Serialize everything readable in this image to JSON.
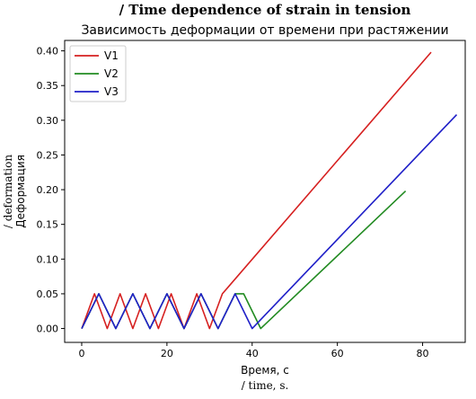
{
  "chart_data": {
    "type": "line",
    "title_en": "/ Time dependence of strain in tension",
    "title": "Зависимость деформации от времени при растяжении",
    "xlabel": "Время, с",
    "xlabel_en": "/ time, s.",
    "ylabel": "Деформация",
    "ylabel_en": "/ deformation",
    "xlim": [
      -4,
      90
    ],
    "ylim": [
      -0.02,
      0.415
    ],
    "x_ticks": [
      0,
      20,
      40,
      60,
      80
    ],
    "y_ticks": [
      0.0,
      0.05,
      0.1,
      0.15,
      0.2,
      0.25,
      0.3,
      0.35,
      0.4
    ],
    "x_tick_labels": [
      "0",
      "20",
      "40",
      "60",
      "80"
    ],
    "y_tick_labels": [
      "0.00",
      "0.05",
      "0.10",
      "0.15",
      "0.20",
      "0.25",
      "0.30",
      "0.35",
      "0.40"
    ],
    "legend_position": "top-left",
    "grid": false,
    "series": [
      {
        "name": "V1",
        "color": "#d62020",
        "x": [
          0,
          3,
          6,
          9,
          12,
          15,
          18,
          21,
          24,
          27,
          30,
          33,
          82
        ],
        "y": [
          0,
          0.05,
          0,
          0.05,
          0,
          0.05,
          0,
          0.05,
          0,
          0.05,
          0,
          0.05,
          0.398
        ]
      },
      {
        "name": "V2",
        "color": "#228b22",
        "x": [
          0,
          4,
          8,
          12,
          16,
          20,
          24,
          28,
          32,
          36,
          38,
          42,
          76
        ],
        "y": [
          0,
          0.05,
          0,
          0.05,
          0,
          0.05,
          0,
          0.05,
          0,
          0.05,
          0.05,
          0,
          0.198
        ]
      },
      {
        "name": "V3",
        "color": "#2020c8",
        "x": [
          0,
          4,
          8,
          12,
          16,
          20,
          24,
          28,
          32,
          36,
          40,
          88
        ],
        "y": [
          0,
          0.05,
          0,
          0.05,
          0,
          0.05,
          0,
          0.05,
          0,
          0.05,
          0,
          0.308
        ]
      }
    ]
  }
}
